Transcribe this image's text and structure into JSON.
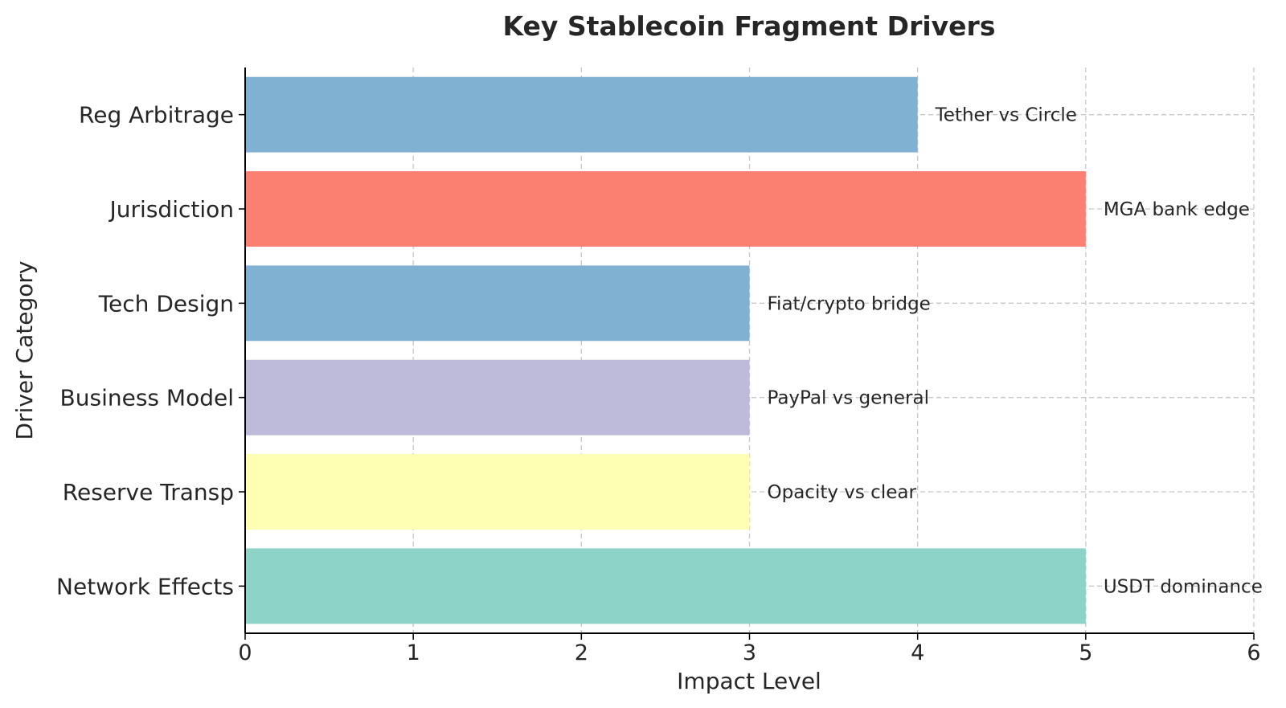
{
  "chart_data": {
    "type": "bar",
    "orientation": "horizontal",
    "title": "Key Stablecoin Fragment Drivers",
    "xlabel": "Impact Level",
    "ylabel": "Driver Category",
    "xlim": [
      0,
      6
    ],
    "xticks": [
      "0",
      "1",
      "2",
      "3",
      "4",
      "5",
      "6"
    ],
    "grid": true,
    "categories": [
      "Network Effects",
      "Reserve Transp",
      "Business Model",
      "Tech Design",
      "Jurisdiction",
      "Reg Arbitrage"
    ],
    "values": [
      5,
      3,
      3,
      3,
      5,
      4
    ],
    "annotations": [
      "USDT dominance",
      "Opacity vs clear",
      "PayPal vs general",
      "Fiat/crypto bridge",
      "MGA bank edge",
      "Tether vs Circle"
    ],
    "colors": [
      "#8dd3c7",
      "#ffffb3",
      "#bebada",
      "#80b1d3",
      "#fb8072",
      "#80b1d3"
    ]
  }
}
